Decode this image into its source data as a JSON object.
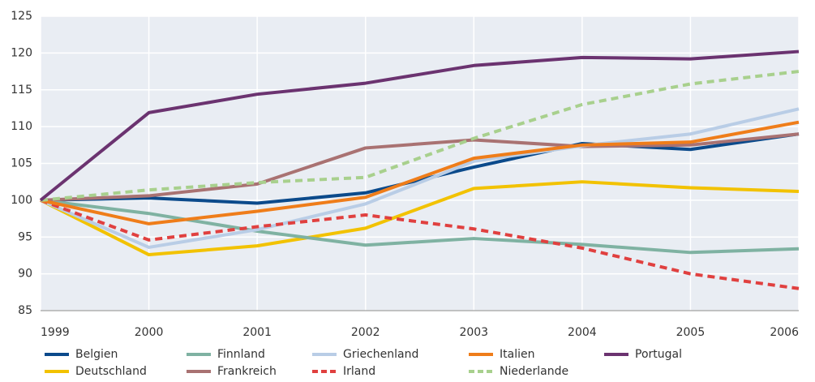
{
  "chart_data": {
    "type": "line",
    "x": [
      1999,
      2000,
      2001,
      2002,
      2003,
      2004,
      2005,
      2006
    ],
    "xlim": [
      1999,
      2006
    ],
    "xticks": [
      1999,
      2000,
      2001,
      2002,
      2003,
      2004,
      2005,
      2006
    ],
    "ylim": [
      85,
      125
    ],
    "yticks": [
      85,
      90,
      95,
      100,
      105,
      110,
      115,
      120,
      125
    ],
    "grid": true,
    "series": [
      {
        "name": "Belgien",
        "color": "#0b4a8b",
        "values": [
          100,
          100.3,
          99.6,
          101,
          104.5,
          107.7,
          106.9,
          109
        ]
      },
      {
        "name": "Deutschland",
        "color": "#f2c200",
        "values": [
          100,
          92.6,
          93.8,
          96.2,
          101.6,
          102.5,
          101.7,
          101.2
        ]
      },
      {
        "name": "Finnland",
        "color": "#7fb2a2",
        "values": [
          100,
          98.2,
          95.8,
          93.9,
          94.8,
          94,
          92.9,
          93.4
        ]
      },
      {
        "name": "Frankreich",
        "color": "#a97272",
        "values": [
          100,
          100.6,
          102.2,
          107.1,
          108.2,
          107.3,
          107.5,
          109
        ]
      },
      {
        "name": "Griechenland",
        "color": "#b9cde6",
        "values": [
          100,
          93.6,
          96,
          99.5,
          105.3,
          107.4,
          109,
          112.4
        ]
      },
      {
        "name": "Irland",
        "color": "#e0403f",
        "dashed": true,
        "values": [
          100,
          94.6,
          96.4,
          98,
          96.1,
          93.5,
          90,
          88
        ]
      },
      {
        "name": "Italien",
        "color": "#ef7d1a",
        "values": [
          100,
          96.8,
          98.5,
          100.4,
          105.7,
          107.5,
          107.9,
          110.6
        ]
      },
      {
        "name": "Niederlande",
        "color": "#a8d08d",
        "dashed": true,
        "values": [
          100,
          101.4,
          102.4,
          103.1,
          108.4,
          113,
          115.8,
          117.5
        ]
      },
      {
        "name": "Portugal",
        "color": "#6b3370",
        "values": [
          100,
          111.9,
          114.4,
          115.9,
          118.3,
          119.4,
          119.2,
          120.2
        ]
      }
    ]
  }
}
